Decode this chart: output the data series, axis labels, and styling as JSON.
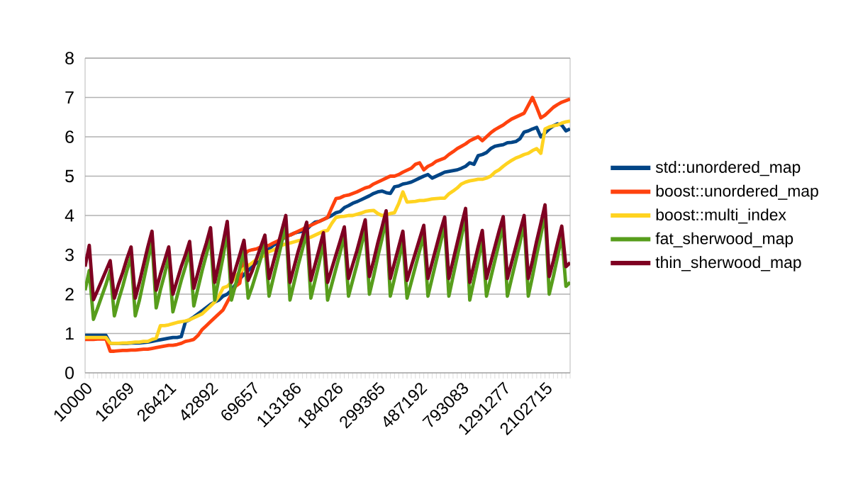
{
  "chart_data": {
    "type": "line",
    "categories": [
      "10000",
      null,
      null,
      null,
      null,
      null,
      null,
      null,
      null,
      null,
      "16269",
      null,
      null,
      null,
      null,
      null,
      null,
      null,
      null,
      null,
      "26421",
      null,
      null,
      null,
      null,
      null,
      null,
      null,
      null,
      null,
      "42892",
      null,
      null,
      null,
      null,
      null,
      null,
      null,
      null,
      null,
      "69657",
      null,
      null,
      null,
      null,
      null,
      null,
      null,
      null,
      null,
      "113186",
      null,
      null,
      null,
      null,
      null,
      null,
      null,
      null,
      null,
      "184026",
      null,
      null,
      null,
      null,
      null,
      null,
      null,
      null,
      null,
      "299365",
      null,
      null,
      null,
      null,
      null,
      null,
      null,
      null,
      null,
      "487192",
      null,
      null,
      null,
      null,
      null,
      null,
      null,
      null,
      null,
      "793083",
      null,
      null,
      null,
      null,
      null,
      null,
      null,
      null,
      null,
      "1291277",
      null,
      null,
      null,
      null,
      null,
      null,
      null,
      null,
      null,
      "2102715",
      null,
      null,
      null,
      null,
      null,
      null
    ],
    "series": [
      {
        "name": "std::unordered_map",
        "color": "#004586",
        "values": [
          0.95,
          0.95,
          0.95,
          0.95,
          0.95,
          0.95,
          0.75,
          0.75,
          0.75,
          0.75,
          0.75,
          0.76,
          0.76,
          0.76,
          0.77,
          0.78,
          0.8,
          0.82,
          0.84,
          0.86,
          0.88,
          0.9,
          0.9,
          0.92,
          1.3,
          1.35,
          1.42,
          1.5,
          1.58,
          1.66,
          1.74,
          1.8,
          1.85,
          1.95,
          2.0,
          2.1,
          2.25,
          2.39,
          2.5,
          2.6,
          2.7,
          2.8,
          2.93,
          3.05,
          3.15,
          3.24,
          3.3,
          3.38,
          3.47,
          3.5,
          3.55,
          3.58,
          3.6,
          3.65,
          3.75,
          3.83,
          3.85,
          3.9,
          3.95,
          4.0,
          4.07,
          4.1,
          4.2,
          4.25,
          4.31,
          4.35,
          4.4,
          4.45,
          4.5,
          4.56,
          4.6,
          4.62,
          4.58,
          4.56,
          4.73,
          4.75,
          4.8,
          4.82,
          4.85,
          4.9,
          4.95,
          5.0,
          5.04,
          4.95,
          5.0,
          5.05,
          5.1,
          5.12,
          5.14,
          5.16,
          5.2,
          5.25,
          5.34,
          5.3,
          5.52,
          5.55,
          5.6,
          5.7,
          5.76,
          5.78,
          5.8,
          5.85,
          5.86,
          5.88,
          5.95,
          6.12,
          6.15,
          6.2,
          6.24,
          6.0,
          6.1,
          6.2,
          6.28,
          6.33,
          6.3,
          6.15,
          6.2
        ]
      },
      {
        "name": "boost::unordered_map",
        "color": "#ff420e",
        "values": [
          0.85,
          0.85,
          0.85,
          0.86,
          0.86,
          0.86,
          0.55,
          0.55,
          0.56,
          0.57,
          0.57,
          0.58,
          0.58,
          0.59,
          0.6,
          0.6,
          0.62,
          0.64,
          0.66,
          0.68,
          0.7,
          0.7,
          0.72,
          0.75,
          0.8,
          0.82,
          0.85,
          0.95,
          1.1,
          1.2,
          1.3,
          1.4,
          1.5,
          1.6,
          1.8,
          2.0,
          2.2,
          2.28,
          3.0,
          3.1,
          3.13,
          3.15,
          3.2,
          3.22,
          3.24,
          3.3,
          3.35,
          3.4,
          3.47,
          3.5,
          3.55,
          3.6,
          3.65,
          3.71,
          3.75,
          3.8,
          3.85,
          3.9,
          3.95,
          4.2,
          4.43,
          4.45,
          4.5,
          4.52,
          4.56,
          4.6,
          4.65,
          4.7,
          4.73,
          4.8,
          4.85,
          4.9,
          4.95,
          5.0,
          5.0,
          5.04,
          5.1,
          5.15,
          5.2,
          5.3,
          5.34,
          5.16,
          5.25,
          5.3,
          5.38,
          5.42,
          5.46,
          5.55,
          5.62,
          5.7,
          5.76,
          5.82,
          5.9,
          5.95,
          6.0,
          5.9,
          6.0,
          6.1,
          6.18,
          6.24,
          6.3,
          6.38,
          6.45,
          6.5,
          6.55,
          6.6,
          6.8,
          7.0,
          6.75,
          6.48,
          6.55,
          6.65,
          6.75,
          6.82,
          6.88,
          6.92,
          6.96
        ]
      },
      {
        "name": "boost::multi_index",
        "color": "#ffd320",
        "values": [
          0.9,
          0.9,
          0.9,
          0.9,
          0.9,
          0.9,
          0.75,
          0.75,
          0.75,
          0.76,
          0.76,
          0.77,
          0.78,
          0.78,
          0.8,
          0.8,
          0.85,
          0.88,
          1.2,
          1.2,
          1.22,
          1.25,
          1.28,
          1.3,
          1.32,
          1.35,
          1.4,
          1.45,
          1.5,
          1.6,
          1.7,
          1.8,
          1.95,
          2.16,
          2.2,
          2.3,
          2.45,
          2.57,
          2.65,
          2.72,
          2.8,
          2.88,
          2.93,
          3.0,
          3.08,
          3.12,
          3.18,
          3.24,
          3.28,
          3.3,
          3.33,
          3.36,
          3.38,
          3.41,
          3.45,
          3.5,
          3.55,
          3.6,
          3.62,
          3.8,
          3.95,
          3.97,
          3.98,
          4.0,
          4.0,
          4.03,
          4.06,
          4.1,
          4.12,
          4.13,
          4.05,
          4.0,
          4.02,
          4.05,
          4.07,
          4.3,
          4.6,
          4.34,
          4.35,
          4.36,
          4.38,
          4.38,
          4.4,
          4.42,
          4.43,
          4.44,
          4.44,
          4.55,
          4.62,
          4.7,
          4.8,
          4.85,
          4.88,
          4.9,
          4.92,
          4.92,
          4.95,
          5.0,
          5.1,
          5.16,
          5.25,
          5.33,
          5.4,
          5.46,
          5.5,
          5.55,
          5.58,
          5.65,
          5.7,
          5.58,
          6.2,
          6.25,
          6.28,
          6.3,
          6.35,
          6.38,
          6.4
        ]
      },
      {
        "name": "fat_sherwood_map",
        "color": "#579d1c",
        "values": [
          2.1,
          2.6,
          1.36,
          1.65,
          1.95,
          2.25,
          2.6,
          1.45,
          1.85,
          2.2,
          2.6,
          2.95,
          1.45,
          1.85,
          2.35,
          2.85,
          3.35,
          1.65,
          2.1,
          2.5,
          2.95,
          1.55,
          1.95,
          2.35,
          2.7,
          3.1,
          1.7,
          2.15,
          2.6,
          3.0,
          3.45,
          1.85,
          2.4,
          2.95,
          3.6,
          1.85,
          2.25,
          2.65,
          3.15,
          1.9,
          2.2,
          2.55,
          2.9,
          3.3,
          1.95,
          2.4,
          2.85,
          3.3,
          3.8,
          1.85,
          2.3,
          2.75,
          3.15,
          3.6,
          1.9,
          2.35,
          2.8,
          3.35,
          1.85,
          2.25,
          2.65,
          3.05,
          3.5,
          1.95,
          2.35,
          2.75,
          3.2,
          3.65,
          2.0,
          2.45,
          2.95,
          3.4,
          3.9,
          1.95,
          2.4,
          2.85,
          3.35,
          1.9,
          2.3,
          2.7,
          3.1,
          3.5,
          1.95,
          2.4,
          2.85,
          3.3,
          3.75,
          1.95,
          2.45,
          2.95,
          3.45,
          3.95,
          1.85,
          2.35,
          2.85,
          3.4,
          1.95,
          2.4,
          2.85,
          3.3,
          3.75,
          1.95,
          2.4,
          2.85,
          3.3,
          3.8,
          1.95,
          2.45,
          3.0,
          3.5,
          4.05,
          2.0,
          2.45,
          2.95,
          3.5,
          2.2,
          2.3
        ]
      },
      {
        "name": "thin_sherwood_map",
        "color": "#7e0021",
        "values": [
          2.7,
          3.24,
          1.86,
          2.1,
          2.35,
          2.6,
          2.85,
          1.9,
          2.25,
          2.55,
          2.9,
          3.2,
          1.9,
          2.3,
          2.75,
          3.2,
          3.6,
          2.1,
          2.5,
          2.85,
          3.2,
          2.0,
          2.35,
          2.7,
          3.0,
          3.34,
          2.15,
          2.55,
          2.95,
          3.3,
          3.69,
          2.3,
          2.8,
          3.3,
          3.85,
          2.3,
          2.65,
          3.0,
          3.37,
          2.35,
          2.6,
          2.9,
          3.2,
          3.5,
          2.4,
          2.8,
          3.2,
          3.6,
          4.0,
          2.3,
          2.7,
          3.1,
          3.45,
          3.83,
          2.35,
          2.75,
          3.15,
          3.56,
          2.3,
          2.65,
          3.0,
          3.35,
          3.71,
          2.4,
          2.75,
          3.1,
          3.5,
          3.89,
          2.45,
          2.85,
          3.3,
          3.7,
          4.12,
          2.4,
          2.8,
          3.2,
          3.6,
          2.35,
          2.7,
          3.05,
          3.4,
          3.75,
          2.4,
          2.8,
          3.2,
          3.6,
          3.96,
          2.4,
          2.85,
          3.3,
          3.75,
          4.18,
          2.3,
          2.75,
          3.2,
          3.62,
          2.4,
          2.8,
          3.2,
          3.6,
          3.97,
          2.4,
          2.8,
          3.2,
          3.6,
          4.0,
          2.4,
          2.85,
          3.35,
          3.8,
          4.27,
          2.45,
          2.85,
          3.3,
          3.73,
          2.7,
          2.8
        ]
      }
    ],
    "ylim": [
      0,
      8
    ],
    "yticks": [
      0,
      1,
      2,
      3,
      4,
      5,
      6,
      7,
      8
    ],
    "grid": "y",
    "legend": "right"
  }
}
